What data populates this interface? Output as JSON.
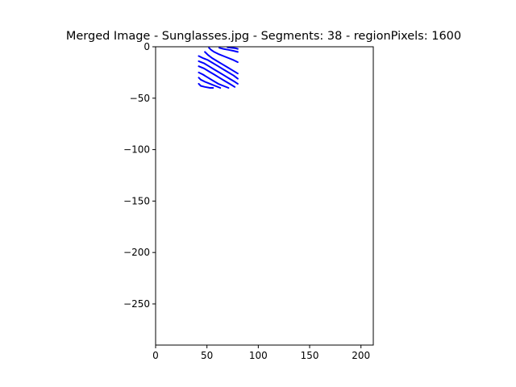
{
  "chart_data": {
    "type": "line",
    "title": "Merged Image - Sunglasses.jpg - Segments: 38 - regionPixels: 1600",
    "xlabel": "",
    "ylabel": "",
    "xlim": [
      0,
      212
    ],
    "ylim": [
      -290,
      0
    ],
    "grid": false,
    "x_ticks": [
      0,
      50,
      100,
      150,
      200
    ],
    "y_ticks": [
      0,
      -50,
      -100,
      -150,
      -200,
      -250
    ],
    "series_color": "#0000ff",
    "series": [
      {
        "x": [
          52,
          54,
          57,
          61,
          66,
          71,
          76,
          80
        ],
        "y": [
          -1,
          -3,
          -5,
          -7,
          -9,
          -11,
          -13,
          -15
        ]
      },
      {
        "x": [
          48,
          51,
          55,
          60,
          65,
          70,
          75,
          80
        ],
        "y": [
          -5,
          -8,
          -11,
          -14,
          -17,
          -20,
          -23,
          -26
        ]
      },
      {
        "x": [
          42,
          46,
          51,
          56,
          61,
          66,
          71,
          76,
          80
        ],
        "y": [
          -9,
          -11,
          -13,
          -16,
          -19,
          -22,
          -25,
          -28,
          -31
        ]
      },
      {
        "x": [
          42,
          47,
          52,
          57,
          62,
          67,
          72,
          77,
          80
        ],
        "y": [
          -14,
          -16,
          -19,
          -22,
          -25,
          -28,
          -31,
          -34,
          -36
        ]
      },
      {
        "x": [
          42,
          47,
          52,
          57,
          62,
          67,
          72,
          77
        ],
        "y": [
          -19,
          -21,
          -24,
          -27,
          -30,
          -33,
          -36,
          -39
        ]
      },
      {
        "x": [
          42,
          46,
          51,
          56,
          61,
          66,
          71
        ],
        "y": [
          -25,
          -27,
          -30,
          -33,
          -36,
          -38,
          -40
        ]
      },
      {
        "x": [
          42,
          44,
          48,
          53,
          58,
          63
        ],
        "y": [
          -30,
          -32,
          -34,
          -36,
          -38,
          -40
        ]
      },
      {
        "x": [
          42,
          44,
          48,
          53,
          56
        ],
        "y": [
          -36,
          -38,
          -39,
          -40,
          -40
        ]
      },
      {
        "x": [
          62,
          66,
          71,
          76,
          80
        ],
        "y": [
          -1,
          -2,
          -3,
          -4,
          -5
        ]
      },
      {
        "x": [
          70,
          74,
          78,
          80
        ],
        "y": [
          -0.5,
          -1,
          -1.5,
          -2
        ]
      }
    ]
  }
}
